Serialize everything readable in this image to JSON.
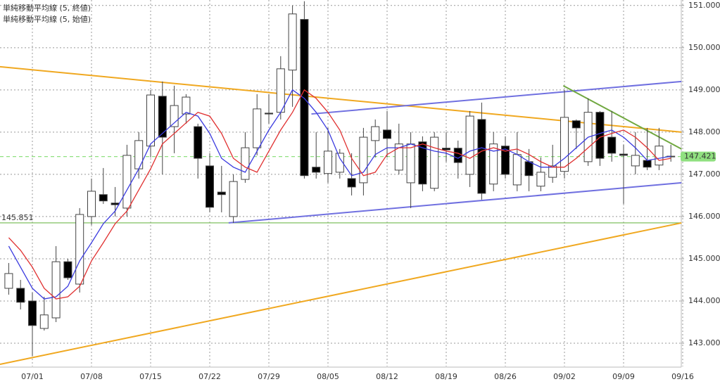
{
  "chart_data": {
    "type": "candlestick",
    "legend": [
      {
        "text": "単純移動平均線 (5, 終値)",
        "color": "#3a3adf"
      },
      {
        "text": "単純移動平均線 (5, 始値)",
        "color": "#e03030"
      }
    ],
    "categories": [
      null,
      null,
      "07/01",
      null,
      null,
      null,
      null,
      "07/08",
      null,
      null,
      null,
      null,
      "07/15",
      null,
      null,
      null,
      null,
      "07/22",
      null,
      null,
      null,
      null,
      "07/29",
      null,
      null,
      null,
      null,
      "08/05",
      null,
      null,
      null,
      null,
      "08/12",
      null,
      null,
      null,
      null,
      "08/19",
      null,
      null,
      null,
      null,
      "08/26",
      null,
      null,
      null,
      null,
      "09/02",
      null,
      null,
      null,
      null,
      "09/09",
      null,
      null,
      null,
      null,
      "09/16"
    ],
    "open": [
      144.3,
      144.3,
      144.0,
      143.35,
      143.6,
      144.93,
      144.4,
      146.0,
      146.52,
      146.32,
      146.2,
      147.13,
      147.67,
      148.85,
      148.13,
      148.43,
      148.13,
      147.2,
      146.58,
      146.0,
      146.88,
      147.63,
      148.45,
      148.47,
      149.47,
      150.67,
      147.17,
      147.02,
      147.05,
      146.9,
      146.8,
      147.8,
      148.05,
      147.1,
      146.8,
      147.77,
      146.67,
      147.62,
      147.62,
      147.0,
      148.3,
      146.77,
      147.67,
      146.75,
      147.3,
      146.72,
      146.93,
      147.07,
      148.27,
      147.3,
      148.47,
      147.88,
      147.48,
      147.2,
      147.33,
      147.22,
      147.43,
      null
    ],
    "high": [
      144.9,
      144.5,
      144.2,
      144.1,
      145.3,
      145.0,
      146.2,
      146.9,
      147.15,
      146.7,
      147.7,
      148.0,
      149.0,
      149.2,
      149.1,
      148.9,
      148.2,
      147.5,
      147.2,
      147.0,
      148.0,
      148.9,
      148.9,
      149.8,
      151.0,
      151.1,
      148.0,
      148.1,
      147.6,
      147.5,
      148.1,
      148.3,
      148.5,
      148.2,
      148.0,
      147.9,
      148.0,
      148.0,
      147.8,
      148.5,
      148.7,
      148.0,
      147.9,
      148.0,
      147.6,
      147.4,
      147.7,
      149.0,
      148.3,
      148.8,
      148.5,
      148.5,
      147.7,
      148.0,
      148.1,
      148.1,
      147.7,
      null
    ],
    "low": [
      144.15,
      143.8,
      142.7,
      143.3,
      143.5,
      144.5,
      144.2,
      145.8,
      146.3,
      146.0,
      146.0,
      146.9,
      147.4,
      147.0,
      147.5,
      148.2,
      146.9,
      146.1,
      146.1,
      145.85,
      146.8,
      147.45,
      148.2,
      148.3,
      148.6,
      146.9,
      146.9,
      146.8,
      146.9,
      146.5,
      146.5,
      147.4,
      147.4,
      147.0,
      146.2,
      146.6,
      146.6,
      147.3,
      146.9,
      146.7,
      146.4,
      146.6,
      146.9,
      146.6,
      146.6,
      146.6,
      146.8,
      146.9,
      147.6,
      147.2,
      147.2,
      147.3,
      146.3,
      147.0,
      147.1,
      147.1,
      147.3,
      null
    ],
    "close": [
      144.65,
      143.97,
      143.42,
      143.67,
      144.93,
      144.55,
      146.05,
      146.6,
      146.37,
      146.28,
      147.45,
      147.8,
      148.88,
      147.88,
      148.63,
      148.83,
      147.38,
      146.22,
      146.52,
      146.83,
      147.63,
      148.55,
      148.43,
      149.5,
      150.8,
      146.97,
      147.05,
      147.55,
      147.5,
      146.7,
      147.88,
      148.13,
      147.85,
      147.72,
      147.72,
      146.77,
      147.88,
      147.58,
      147.28,
      148.38,
      146.55,
      147.72,
      147.0,
      147.47,
      146.97,
      147.05,
      147.2,
      148.35,
      148.1,
      148.47,
      147.38,
      147.5,
      147.45,
      147.45,
      147.17,
      147.67,
      147.42,
      null
    ],
    "up_color": "#ffffff",
    "down_color": "#000000",
    "candle_edge": "#444444",
    "series": [
      {
        "name": "単純移動平均線 (5, 終値)",
        "color": "#3a3adf",
        "values": [
          145.3,
          144.8,
          144.3,
          144.05,
          144.1,
          144.35,
          144.95,
          145.38,
          145.83,
          146.13,
          146.63,
          147.13,
          147.72,
          147.97,
          148.22,
          148.47,
          148.38,
          147.97,
          147.38,
          147.17,
          147.05,
          147.55,
          148.05,
          148.47,
          149.0,
          148.8,
          148.47,
          148.05,
          147.38,
          146.97,
          147.05,
          147.47,
          147.63,
          147.63,
          147.72,
          147.63,
          147.55,
          147.5,
          147.38,
          147.55,
          147.63,
          147.55,
          147.6,
          147.47,
          147.3,
          147.17,
          147.17,
          147.38,
          147.63,
          147.88,
          147.97,
          148.05,
          147.88,
          147.63,
          147.33,
          147.38,
          147.43,
          null
        ]
      },
      {
        "name": "単純移動平均線 (5, 始値)",
        "color": "#e03030",
        "values": [
          145.5,
          145.2,
          144.8,
          144.3,
          144.05,
          144.1,
          144.35,
          144.95,
          145.38,
          145.83,
          146.13,
          146.63,
          147.13,
          147.72,
          147.97,
          148.22,
          148.47,
          148.38,
          147.97,
          147.38,
          147.17,
          147.05,
          147.55,
          148.05,
          148.47,
          149.0,
          148.8,
          148.47,
          148.05,
          147.38,
          146.97,
          147.05,
          147.47,
          147.63,
          147.63,
          147.72,
          147.63,
          147.55,
          147.5,
          147.38,
          147.55,
          147.63,
          147.55,
          147.6,
          147.47,
          147.3,
          147.17,
          147.17,
          147.38,
          147.63,
          147.88,
          147.97,
          148.05,
          147.88,
          147.63,
          147.33,
          147.38,
          null
        ]
      }
    ],
    "trendlines": [
      {
        "color": "#f0a820",
        "x": [
          -0.74,
          56.9
        ],
        "y": [
          149.55,
          148.0
        ]
      },
      {
        "color": "#f0a820",
        "x": [
          -0.74,
          56.9
        ],
        "y": [
          142.5,
          145.85
        ]
      },
      {
        "color": "#7070e0",
        "x": [
          25.6,
          56.9
        ],
        "y": [
          148.43,
          149.2
        ]
      },
      {
        "color": "#7070e0",
        "x": [
          18.6,
          56.9
        ],
        "y": [
          145.85,
          146.8
        ]
      },
      {
        "color": "#70a840",
        "x": [
          46.9,
          56.9
        ],
        "y": [
          149.1,
          147.6
        ]
      }
    ],
    "hlines": [
      {
        "value": 145.851,
        "label": "145.851",
        "color": "#80c060",
        "dashed": false
      },
      {
        "value": 147.421,
        "label": "147.421",
        "color": "#90e080",
        "dashed": true
      }
    ],
    "ylim": [
      142.45,
      151.13
    ],
    "yticks": [
      {
        "value": 143,
        "label": "143.000"
      },
      {
        "value": 144,
        "label": "144.000"
      },
      {
        "value": 145,
        "label": "145.000"
      },
      {
        "value": 146,
        "label": "146.000"
      },
      {
        "value": 147,
        "label": "147.000"
      },
      {
        "value": 148,
        "label": "148.000"
      },
      {
        "value": 149,
        "label": "149.000"
      },
      {
        "value": 150,
        "label": "150.000"
      },
      {
        "value": 151,
        "label": "151.000"
      }
    ],
    "grid": true
  }
}
